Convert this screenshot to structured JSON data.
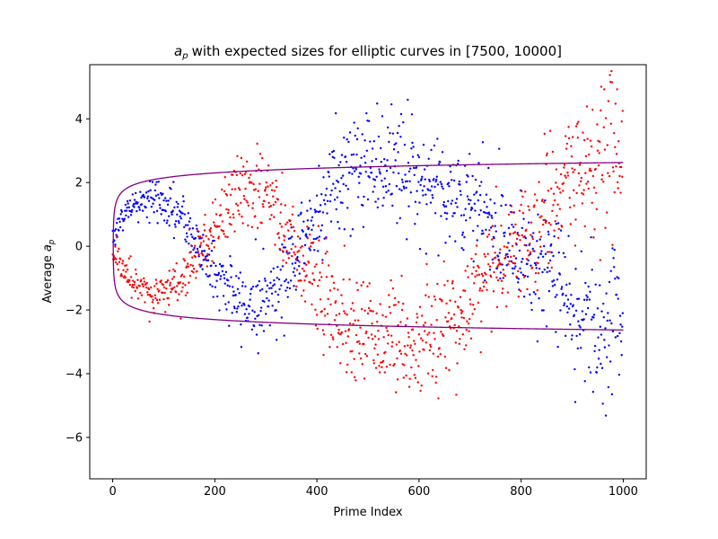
{
  "chart_data": {
    "type": "scatter",
    "title": "with expected sizes for elliptic curves in [7500, 10000]",
    "title_symbol": "a",
    "title_subscript": "p",
    "xlabel": "Prime Index",
    "ylabel": "Average",
    "ylabel_symbol": "a",
    "ylabel_subscript": "p",
    "xlim": [
      -45,
      1045
    ],
    "ylim": [
      -7.3,
      5.7
    ],
    "xticks": [
      0,
      200,
      400,
      600,
      800,
      1000
    ],
    "xtick_labels": [
      "0",
      "200",
      "400",
      "600",
      "800",
      "1000"
    ],
    "yticks": [
      -6,
      -4,
      -2,
      0,
      2,
      4
    ],
    "ytick_labels": [
      "−6",
      "−4",
      "−2",
      "0",
      "2",
      "4"
    ],
    "grid": false,
    "legend": "none",
    "n_points_per_series": 1000,
    "series": [
      {
        "color": "#0000ff",
        "marker": "dot",
        "trend_points": [
          [
            0,
            0.3
          ],
          [
            30,
            1.2
          ],
          [
            80,
            1.5
          ],
          [
            130,
            1.0
          ],
          [
            160,
            0.2
          ],
          [
            200,
            -0.8
          ],
          [
            250,
            -1.8
          ],
          [
            300,
            -1.7
          ],
          [
            350,
            -0.5
          ],
          [
            400,
            1.0
          ],
          [
            450,
            2.3
          ],
          [
            520,
            2.7
          ],
          [
            600,
            2.2
          ],
          [
            650,
            1.8
          ],
          [
            700,
            1.2
          ],
          [
            760,
            0.5
          ],
          [
            800,
            0.0
          ],
          [
            850,
            -0.8
          ],
          [
            900,
            -1.8
          ],
          [
            950,
            -2.5
          ],
          [
            1000,
            -2.2
          ]
        ],
        "noise_sd": [
          [
            0,
            0.2
          ],
          [
            150,
            0.4
          ],
          [
            400,
            0.8
          ],
          [
            600,
            0.9
          ],
          [
            800,
            0.9
          ],
          [
            1000,
            1.3
          ]
        ]
      },
      {
        "color": "#ff0000",
        "marker": "dot",
        "trend_points": [
          [
            0,
            -0.1
          ],
          [
            30,
            -1.0
          ],
          [
            80,
            -1.6
          ],
          [
            130,
            -1.1
          ],
          [
            160,
            -0.4
          ],
          [
            200,
            0.6
          ],
          [
            250,
            1.8
          ],
          [
            300,
            1.6
          ],
          [
            350,
            0.2
          ],
          [
            400,
            -1.1
          ],
          [
            450,
            -2.3
          ],
          [
            520,
            -2.8
          ],
          [
            600,
            -3.0
          ],
          [
            650,
            -2.6
          ],
          [
            700,
            -1.6
          ],
          [
            760,
            -0.5
          ],
          [
            800,
            0.3
          ],
          [
            850,
            1.0
          ],
          [
            900,
            2.0
          ],
          [
            950,
            2.8
          ],
          [
            1000,
            3.0
          ]
        ],
        "noise_sd": [
          [
            0,
            0.2
          ],
          [
            150,
            0.4
          ],
          [
            400,
            0.8
          ],
          [
            600,
            0.9
          ],
          [
            800,
            0.9
          ],
          [
            1000,
            1.3
          ]
        ]
      }
    ],
    "envelope": {
      "color": "#800080",
      "formula": "±sqrt(ln(x))",
      "x_range": [
        1,
        1000
      ]
    }
  }
}
